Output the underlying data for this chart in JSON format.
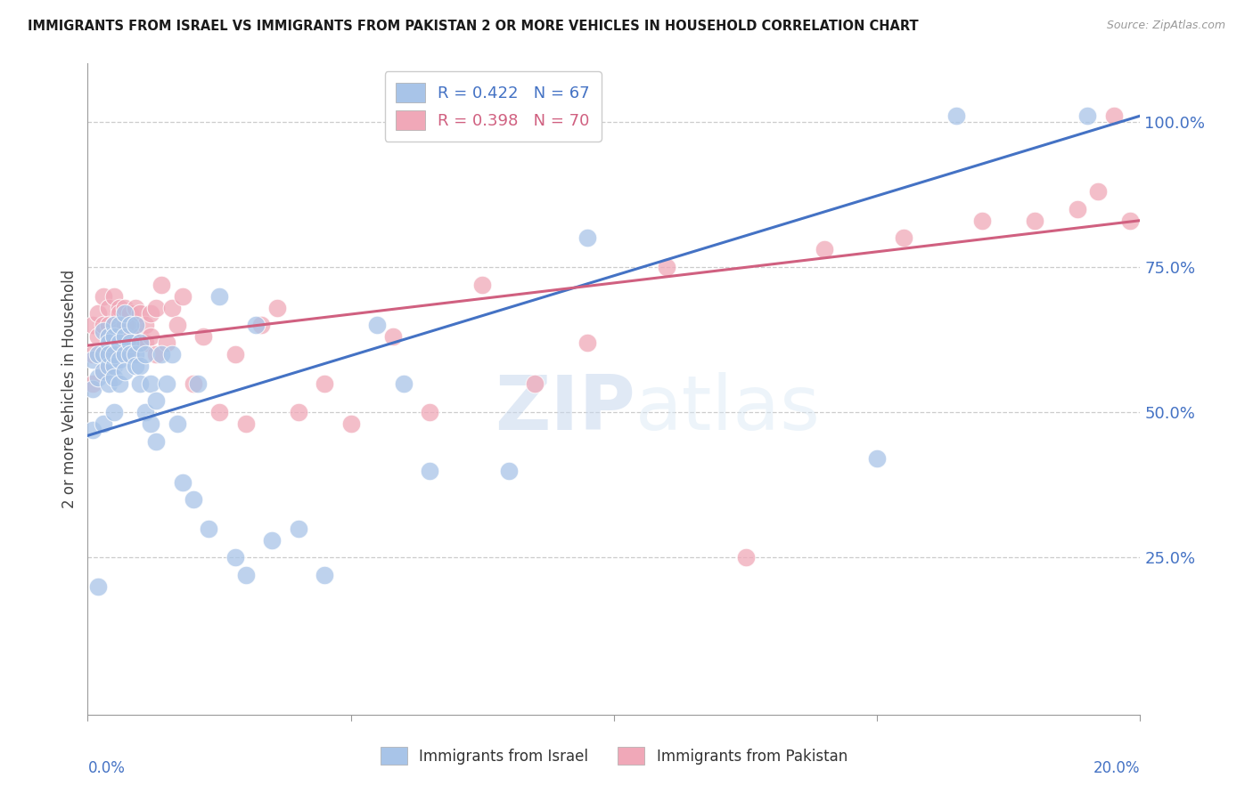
{
  "title": "IMMIGRANTS FROM ISRAEL VS IMMIGRANTS FROM PAKISTAN 2 OR MORE VEHICLES IN HOUSEHOLD CORRELATION CHART",
  "source": "Source: ZipAtlas.com",
  "ylabel": "2 or more Vehicles in Household",
  "yticks": [
    "100.0%",
    "75.0%",
    "50.0%",
    "25.0%"
  ],
  "ytick_vals": [
    1.0,
    0.75,
    0.5,
    0.25
  ],
  "israel_R": 0.422,
  "israel_N": 67,
  "pakistan_R": 0.398,
  "pakistan_N": 70,
  "israel_color": "#a8c4e8",
  "pakistan_color": "#f0a8b8",
  "israel_line_color": "#4472c4",
  "pakistan_line_color": "#d06080",
  "legend_israel_label": "Immigrants from Israel",
  "legend_pakistan_label": "Immigrants from Pakistan",
  "watermark_zip": "ZIP",
  "watermark_atlas": "atlas",
  "x_min": 0.0,
  "x_max": 0.2,
  "y_min": -0.02,
  "y_max": 1.1,
  "israel_line_x0": 0.0,
  "israel_line_y0": 0.46,
  "israel_line_x1": 0.2,
  "israel_line_y1": 1.01,
  "pakistan_line_x0": 0.0,
  "pakistan_line_y0": 0.615,
  "pakistan_line_x1": 0.2,
  "pakistan_line_y1": 0.83,
  "israel_x": [
    0.001,
    0.001,
    0.001,
    0.002,
    0.002,
    0.002,
    0.003,
    0.003,
    0.003,
    0.003,
    0.004,
    0.004,
    0.004,
    0.004,
    0.004,
    0.005,
    0.005,
    0.005,
    0.005,
    0.005,
    0.005,
    0.006,
    0.006,
    0.006,
    0.006,
    0.007,
    0.007,
    0.007,
    0.007,
    0.008,
    0.008,
    0.008,
    0.009,
    0.009,
    0.009,
    0.01,
    0.01,
    0.01,
    0.011,
    0.011,
    0.012,
    0.012,
    0.013,
    0.013,
    0.014,
    0.015,
    0.016,
    0.017,
    0.018,
    0.02,
    0.021,
    0.023,
    0.025,
    0.028,
    0.03,
    0.032,
    0.035,
    0.04,
    0.045,
    0.055,
    0.06,
    0.065,
    0.08,
    0.095,
    0.15,
    0.165,
    0.19
  ],
  "israel_y": [
    0.47,
    0.54,
    0.59,
    0.56,
    0.6,
    0.2,
    0.6,
    0.57,
    0.64,
    0.48,
    0.63,
    0.58,
    0.62,
    0.55,
    0.6,
    0.65,
    0.63,
    0.58,
    0.56,
    0.6,
    0.5,
    0.65,
    0.62,
    0.59,
    0.55,
    0.67,
    0.63,
    0.6,
    0.57,
    0.65,
    0.62,
    0.6,
    0.6,
    0.58,
    0.65,
    0.62,
    0.58,
    0.55,
    0.5,
    0.6,
    0.48,
    0.55,
    0.45,
    0.52,
    0.6,
    0.55,
    0.6,
    0.48,
    0.38,
    0.35,
    0.55,
    0.3,
    0.7,
    0.25,
    0.22,
    0.65,
    0.28,
    0.3,
    0.22,
    0.65,
    0.55,
    0.4,
    0.4,
    0.8,
    0.42,
    1.01,
    1.01
  ],
  "pakistan_x": [
    0.001,
    0.001,
    0.001,
    0.002,
    0.002,
    0.003,
    0.003,
    0.003,
    0.003,
    0.004,
    0.004,
    0.004,
    0.004,
    0.005,
    0.005,
    0.005,
    0.005,
    0.006,
    0.006,
    0.006,
    0.006,
    0.007,
    0.007,
    0.007,
    0.007,
    0.008,
    0.008,
    0.008,
    0.009,
    0.009,
    0.009,
    0.01,
    0.01,
    0.01,
    0.011,
    0.011,
    0.012,
    0.012,
    0.013,
    0.013,
    0.014,
    0.015,
    0.016,
    0.017,
    0.018,
    0.02,
    0.022,
    0.025,
    0.028,
    0.03,
    0.033,
    0.036,
    0.04,
    0.045,
    0.05,
    0.058,
    0.065,
    0.075,
    0.085,
    0.095,
    0.11,
    0.125,
    0.14,
    0.155,
    0.17,
    0.18,
    0.188,
    0.192,
    0.195,
    0.198
  ],
  "pakistan_y": [
    0.6,
    0.65,
    0.55,
    0.67,
    0.63,
    0.7,
    0.65,
    0.6,
    0.57,
    0.68,
    0.63,
    0.65,
    0.6,
    0.7,
    0.65,
    0.63,
    0.6,
    0.68,
    0.64,
    0.62,
    0.67,
    0.65,
    0.62,
    0.68,
    0.63,
    0.67,
    0.63,
    0.6,
    0.65,
    0.62,
    0.68,
    0.63,
    0.67,
    0.62,
    0.65,
    0.62,
    0.67,
    0.63,
    0.6,
    0.68,
    0.72,
    0.62,
    0.68,
    0.65,
    0.7,
    0.55,
    0.63,
    0.5,
    0.6,
    0.48,
    0.65,
    0.68,
    0.5,
    0.55,
    0.48,
    0.63,
    0.5,
    0.72,
    0.55,
    0.62,
    0.75,
    0.25,
    0.78,
    0.8,
    0.83,
    0.83,
    0.85,
    0.88,
    1.01,
    0.83
  ]
}
